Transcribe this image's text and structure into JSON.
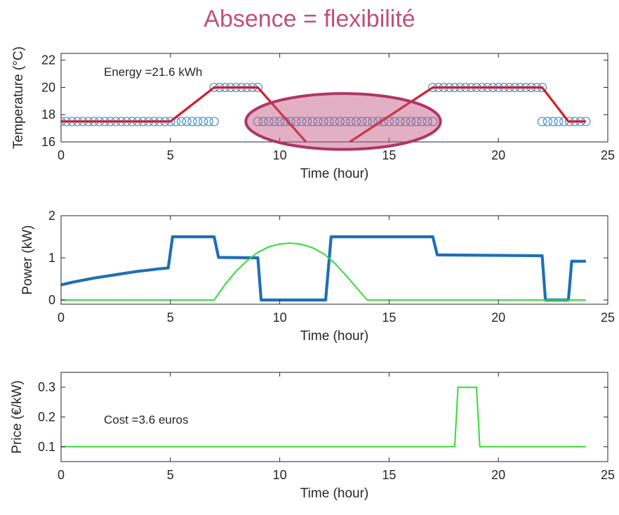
{
  "title": "Absence = flexibilité",
  "colors": {
    "title": "#c0507a",
    "temperature_marker": "#3a8fd0",
    "temperature_line": "#d01f2a",
    "power": "#1f6fb5",
    "solar": "#33dd33",
    "price": "#33dd33",
    "highlight_fill": "#c0507a",
    "highlight_stroke": "#b03565"
  },
  "chart_data": [
    {
      "type": "line",
      "id": "temperature",
      "xlabel": "Time (hour)",
      "ylabel": "Temperature (°C)",
      "xlim": [
        0,
        25
      ],
      "ylim": [
        16,
        22.5
      ],
      "xticks": [
        0,
        5,
        10,
        15,
        20,
        25
      ],
      "yticks": [
        16,
        18,
        20,
        22
      ],
      "annotation": "Energy =21.6 kWh",
      "setpoint_segments": [
        {
          "x_start": 0,
          "x_end": 7,
          "y": 17.5
        },
        {
          "x_start": 7,
          "x_end": 9,
          "y": 20
        },
        {
          "x_start": 9,
          "x_end": 17,
          "y": 17.5
        },
        {
          "x_start": 17,
          "x_end": 22,
          "y": 20
        },
        {
          "x_start": 22,
          "x_end": 24,
          "y": 17.5
        }
      ],
      "temperature_segments": [
        [
          [
            0,
            17.5
          ],
          [
            5,
            17.5
          ],
          [
            7,
            20
          ],
          [
            9,
            20
          ],
          [
            11.2,
            16
          ]
        ],
        [
          [
            13.2,
            16
          ],
          [
            17,
            20
          ],
          [
            22,
            20
          ],
          [
            23.2,
            17.5
          ],
          [
            24,
            17.5
          ]
        ]
      ],
      "highlight": {
        "cx": 12.9,
        "cy": 17.5,
        "rx": 4.45,
        "ry": 2.05
      }
    },
    {
      "type": "line",
      "id": "power",
      "xlabel": "Time (hour)",
      "ylabel": "Power (kW)",
      "xlim": [
        0,
        25
      ],
      "ylim": [
        -0.1,
        2
      ],
      "xticks": [
        0,
        5,
        10,
        15,
        20,
        25
      ],
      "yticks": [
        0,
        1,
        2
      ],
      "series": [
        {
          "role": "heating_power",
          "points": [
            [
              0,
              0.36
            ],
            [
              0.5,
              0.42
            ],
            [
              1,
              0.47
            ],
            [
              1.5,
              0.52
            ],
            [
              2,
              0.56
            ],
            [
              2.5,
              0.6
            ],
            [
              3,
              0.64
            ],
            [
              3.5,
              0.68
            ],
            [
              4,
              0.71
            ],
            [
              4.5,
              0.74
            ],
            [
              4.9,
              0.76
            ],
            [
              5.1,
              1.5
            ],
            [
              7,
              1.5
            ],
            [
              7.2,
              1.01
            ],
            [
              9,
              1.0
            ],
            [
              9.15,
              0.0
            ],
            [
              12.1,
              0.0
            ],
            [
              12.35,
              1.5
            ],
            [
              17,
              1.5
            ],
            [
              17.2,
              1.07
            ],
            [
              22,
              1.05
            ],
            [
              22.15,
              0.0
            ],
            [
              23.2,
              0.0
            ],
            [
              23.35,
              0.92
            ],
            [
              24,
              0.92
            ]
          ]
        },
        {
          "role": "solar_production",
          "points": [
            [
              0,
              0
            ],
            [
              7,
              0
            ],
            [
              7.5,
              0.37
            ],
            [
              8,
              0.68
            ],
            [
              8.5,
              0.93
            ],
            [
              9,
              1.13
            ],
            [
              9.5,
              1.26
            ],
            [
              10,
              1.33
            ],
            [
              10.5,
              1.35
            ],
            [
              11,
              1.32
            ],
            [
              11.5,
              1.24
            ],
            [
              12,
              1.1
            ],
            [
              12.5,
              0.88
            ],
            [
              13,
              0.6
            ],
            [
              13.5,
              0.3
            ],
            [
              14,
              0
            ],
            [
              24,
              0
            ]
          ]
        }
      ]
    },
    {
      "type": "line",
      "id": "price",
      "xlabel": "Time (hour)",
      "ylabel": "Price (€/kW)",
      "xlim": [
        0,
        25
      ],
      "ylim": [
        0.05,
        0.35
      ],
      "xticks": [
        0,
        5,
        10,
        15,
        20,
        25
      ],
      "yticks": [
        0.1,
        0.2,
        0.3
      ],
      "ytick_labels": [
        "0.1",
        "0.2",
        "0.3"
      ],
      "annotation": "Cost =3.6 euros",
      "series": [
        {
          "role": "price",
          "points": [
            [
              0,
              0.1
            ],
            [
              18,
              0.1
            ],
            [
              18.15,
              0.3
            ],
            [
              19,
              0.3
            ],
            [
              19.15,
              0.1
            ],
            [
              24,
              0.1
            ]
          ]
        }
      ]
    }
  ]
}
